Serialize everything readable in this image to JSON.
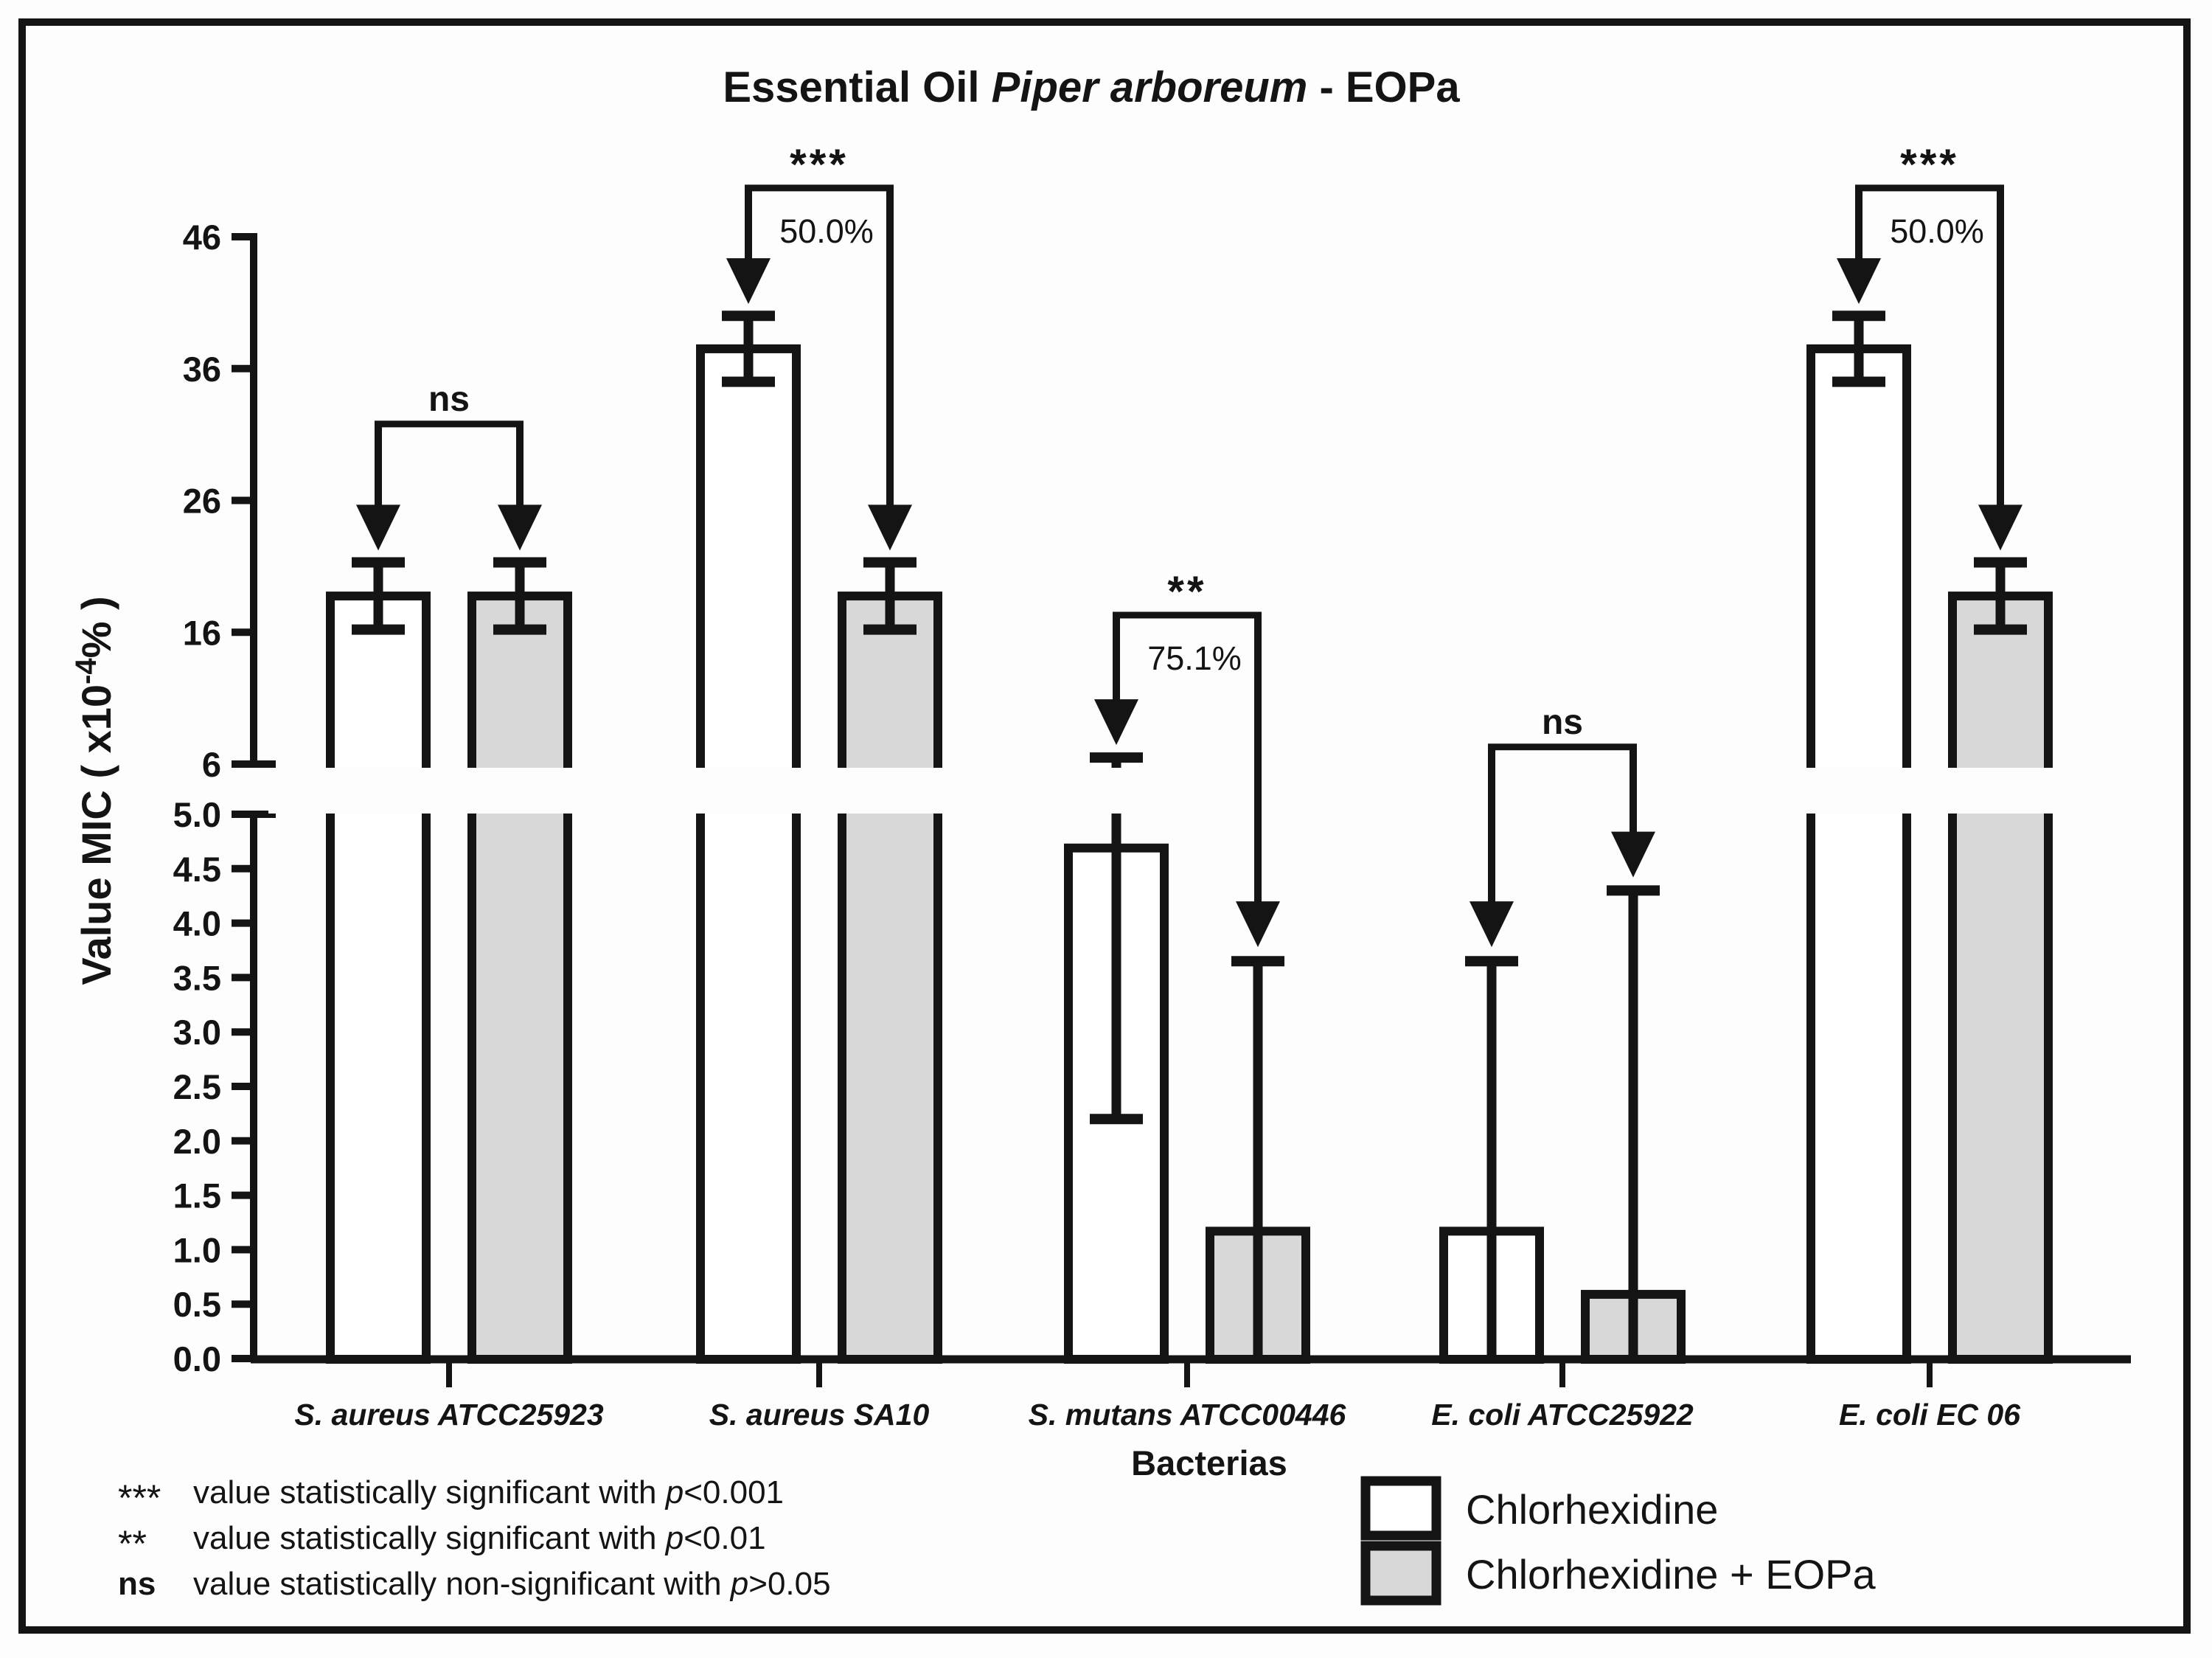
{
  "figure": {
    "title_parts": [
      {
        "text": "Essential Oil ",
        "italic": false
      },
      {
        "text": "Piper arboreum",
        "italic": true
      },
      {
        "text": " - EOPa",
        "italic": false
      }
    ],
    "y_axis_label": {
      "prefix": "Value MIC ( x10",
      "sup": "-4",
      "suffix": "% )"
    },
    "x_axis_label": "Bacterias",
    "legend": [
      {
        "label": "Chlorhexidine",
        "fill": "#ffffff"
      },
      {
        "label": "Chlorhexidine + EOPa",
        "fill": "#d8d8d8"
      }
    ],
    "footnotes": [
      {
        "symbol": "***",
        "symbol_bold": false,
        "text": "value statistically significant with ",
        "p": "p",
        "condition": "<0.001"
      },
      {
        "symbol": "**",
        "symbol_bold": false,
        "text": "value statistically significant with ",
        "p": "p",
        "condition": "<0.01"
      },
      {
        "symbol": "ns",
        "symbol_bold": true,
        "text": "value statistically non-significant with ",
        "p": "p",
        "condition": ">0.05"
      }
    ],
    "colors": {
      "ink": "#141414",
      "gray_fill": "#d8d8d8",
      "annotation": "#2b2b2b",
      "percent_text": "#3a3a3a",
      "background": "#fdfdfd"
    }
  },
  "chart_data": {
    "type": "bar",
    "title": "Essential Oil Piper arboreum - EOPa",
    "xlabel": "Bacterias",
    "ylabel": "Value MIC ( x10-4 % )",
    "categories": [
      "S. aureus ATCC25923",
      "S. aureus SA10",
      "S. mutans ATCC00446",
      "E. coli ATCC25922",
      "E. coli EC 06"
    ],
    "series": [
      {
        "name": "Chlorhexidine",
        "fill": "#ffffff",
        "values": [
          18.75,
          37.5,
          4.69,
          1.17,
          37.5
        ],
        "err_top": [
          21.3,
          40.0,
          6.5,
          3.65,
          40.0
        ],
        "err_bottom": [
          16.2,
          35.0,
          2.2,
          null,
          35.0
        ]
      },
      {
        "name": "Chlorhexidine + EOPa",
        "fill": "#d8d8d8",
        "values": [
          18.75,
          18.75,
          1.17,
          0.59,
          18.75
        ],
        "err_top": [
          21.3,
          21.3,
          3.65,
          4.3,
          21.3
        ],
        "err_bottom": [
          16.2,
          16.2,
          null,
          null,
          16.2
        ]
      }
    ],
    "annotations": [
      {
        "significance": "ns",
        "reduction": null,
        "bracket_value": 31.8,
        "left_tip": 22.2,
        "right_tip": 22.2
      },
      {
        "significance": "***",
        "reduction": "50.0%",
        "bracket_value": 49.7,
        "left_tip": 40.9,
        "right_tip": 22.2
      },
      {
        "significance": "**",
        "reduction": "75.1%",
        "bracket_value": 17.3,
        "left_tip": 7.45,
        "right_tip": 3.78
      },
      {
        "significance": "ns",
        "reduction": null,
        "bracket_value": 7.3,
        "left_tip": 3.78,
        "right_tip": 4.42
      },
      {
        "significance": "***",
        "reduction": "50.0%",
        "bracket_value": 49.7,
        "left_tip": 40.9,
        "right_tip": 22.2
      }
    ],
    "axis": {
      "upper_ticks": [
        {
          "label": "46",
          "value": 46
        },
        {
          "label": "36",
          "value": 36
        },
        {
          "label": "26",
          "value": 26
        },
        {
          "label": "16",
          "value": 16
        },
        {
          "label": "6",
          "value": 6
        }
      ],
      "lower_ticks": [
        {
          "label": "5.0",
          "value": 5.0
        },
        {
          "label": "4.5",
          "value": 4.5
        },
        {
          "label": "4.0",
          "value": 4.0
        },
        {
          "label": "3.5",
          "value": 3.5
        },
        {
          "label": "3.0",
          "value": 3.0
        },
        {
          "label": "2.5",
          "value": 2.5
        },
        {
          "label": "2.0",
          "value": 2.0
        },
        {
          "label": "1.5",
          "value": 1.5
        },
        {
          "label": "1.0",
          "value": 1.0
        },
        {
          "label": "0.5",
          "value": 0.5
        },
        {
          "label": "0.0",
          "value": 0.0
        }
      ],
      "break_between": [
        5.0,
        6.0
      ],
      "grid": false,
      "legend_position": "bottom-right"
    }
  }
}
